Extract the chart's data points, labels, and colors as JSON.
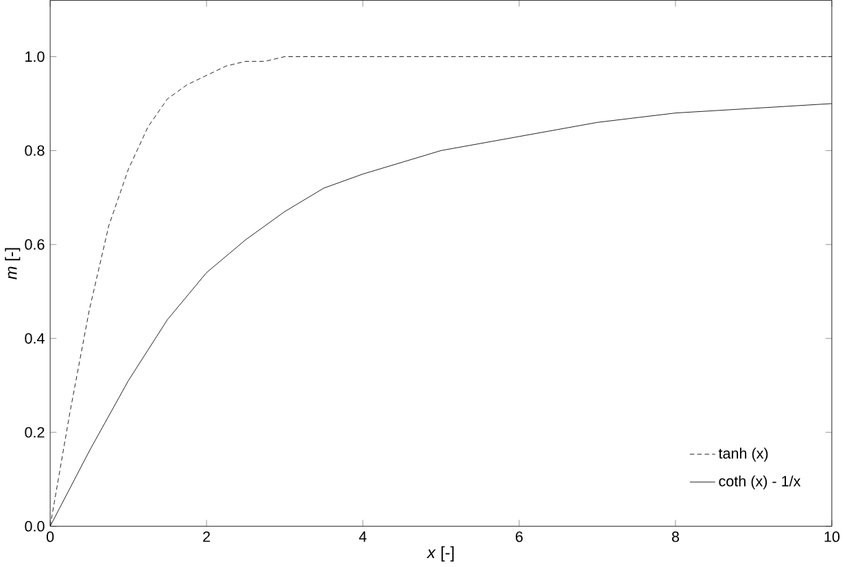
{
  "chart_data": {
    "type": "line",
    "xlabel": "*x* [-]",
    "ylabel": "*m* [-]",
    "xlim": [
      0,
      10
    ],
    "ylim": [
      0,
      1.12
    ],
    "xticks": [
      0,
      2,
      4,
      6,
      8,
      10
    ],
    "yticks": [
      {
        "value": 0,
        "label": "0.0"
      },
      0.2,
      0.4,
      0.6,
      0.8,
      {
        "value": 1,
        "label": "1.0"
      }
    ],
    "legend": "bottom right",
    "grid": false,
    "marker": "none",
    "series": [
      {
        "name": "tanh (x)",
        "color": "#000000",
        "line_style": "dashed",
        "x": [
          0,
          0.25,
          0.5,
          0.75,
          1,
          1.25,
          1.5,
          1.75,
          2,
          2.25,
          2.5,
          2.75,
          3,
          3.5,
          4,
          5,
          6,
          8,
          10
        ],
        "values": [
          0,
          0.24,
          0.46,
          0.64,
          0.76,
          0.85,
          0.91,
          0.94,
          0.96,
          0.98,
          0.99,
          0.99,
          1.0,
          1.0,
          1.0,
          1.0,
          1.0,
          1.0,
          1.0
        ]
      },
      {
        "name": "coth (x) - 1/x",
        "color": "#000000",
        "line_style": "solid",
        "x": [
          0,
          0.5,
          1,
          1.5,
          2,
          2.5,
          3,
          3.5,
          4,
          5,
          6,
          7,
          8,
          9,
          10
        ],
        "values": [
          0,
          0.16,
          0.31,
          0.44,
          0.54,
          0.61,
          0.67,
          0.72,
          0.75,
          0.8,
          0.83,
          0.86,
          0.88,
          0.89,
          0.9
        ]
      }
    ]
  }
}
